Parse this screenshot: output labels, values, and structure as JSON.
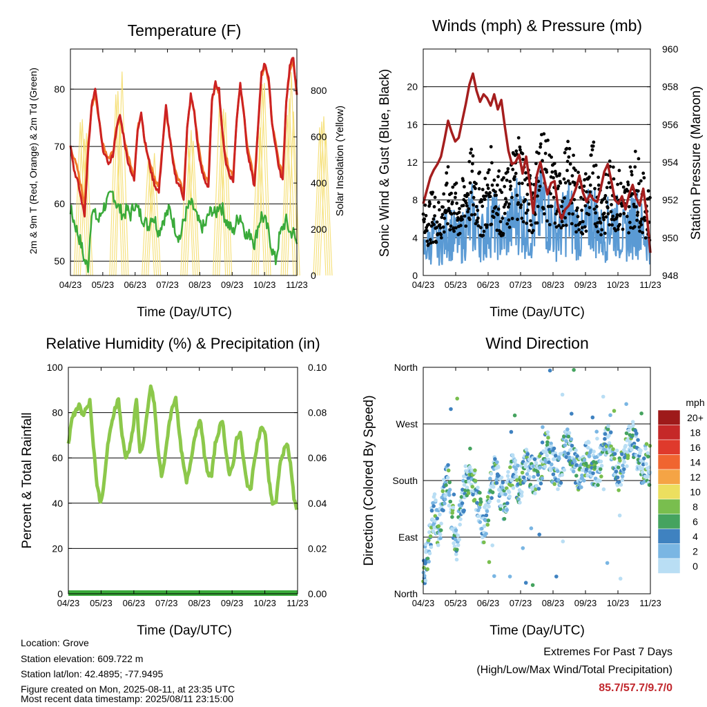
{
  "colors": {
    "temp2m": "#cc2222",
    "temp9m": "#f07a2a",
    "dewpoint": "#3aaa3a",
    "solar": "#f5de70",
    "wind": "#5a9ad4",
    "gust": "#000000",
    "pressure": "#a51e1e",
    "rh": "#8cc84b",
    "precip": "#3aaa3a",
    "extremes": "#c1272d"
  },
  "chart_data": [
    {
      "id": "temperature",
      "type": "line",
      "title": "Temperature (F)",
      "xlabel": "Time (Day/UTC)",
      "ylabel": "2m & 9m T (Red, Orange) & 2m Td (Green)",
      "ylabel_right": "Solar Insolation (Yellow)",
      "x_ticks": [
        "04/23",
        "05/23",
        "06/23",
        "07/23",
        "08/23",
        "09/23",
        "10/23",
        "11/23"
      ],
      "y_ticks": [
        50,
        60,
        70,
        80
      ],
      "y_right_ticks": [
        0,
        200,
        400,
        600,
        800
      ],
      "ylim": [
        47.5,
        87
      ],
      "ylim_right": [
        0,
        980
      ],
      "grid": "horizontal",
      "series": [
        {
          "key": "temp2m",
          "values": [
            70.5,
            66,
            64,
            61,
            58,
            69,
            77,
            80,
            75,
            70,
            68,
            67,
            68.5,
            73,
            75.5,
            72,
            68,
            66,
            64,
            73,
            76,
            71,
            68,
            65,
            63,
            62,
            70,
            77,
            72,
            67,
            64,
            63,
            61,
            73,
            79,
            76,
            70,
            66,
            64,
            63,
            78,
            81,
            80,
            72,
            67,
            65,
            64,
            75,
            81,
            76,
            69,
            66,
            63,
            73,
            83,
            84.5,
            82,
            74,
            70,
            66,
            64,
            78,
            84,
            85.5,
            79
          ]
        },
        {
          "key": "temp9m",
          "values": [
            70,
            68,
            66,
            63,
            60,
            70,
            77,
            79,
            75,
            71,
            69,
            68,
            69,
            73,
            75,
            72,
            69,
            67,
            65,
            73,
            76,
            71,
            68,
            66,
            64,
            63,
            70,
            76.5,
            72,
            68,
            65,
            64,
            62,
            73,
            78.5,
            76,
            71,
            67,
            65,
            64,
            78,
            80.5,
            79.5,
            72,
            68,
            66,
            65,
            75,
            80.5,
            76,
            70,
            67,
            64,
            73,
            82.5,
            84,
            81.5,
            74,
            70.5,
            67,
            65,
            78,
            83.5,
            85,
            79
          ]
        },
        {
          "key": "dewpoint",
          "values": [
            59,
            57,
            55,
            53,
            50,
            49,
            59,
            58,
            57,
            59,
            60,
            61,
            62,
            60,
            59,
            58,
            59,
            58,
            60,
            59,
            58,
            57,
            56,
            58,
            57,
            55,
            57,
            58,
            59,
            57,
            55,
            54,
            57,
            59,
            60,
            59,
            57,
            56,
            56,
            58,
            59,
            58,
            60,
            59,
            57,
            56,
            55,
            57,
            58,
            56,
            54,
            55,
            53,
            56,
            58,
            57,
            55,
            52,
            50,
            54,
            56,
            57,
            55,
            55,
            53
          ]
        },
        {
          "key": "solar",
          "peaks": [
            0.4,
            1.5,
            2.5,
            3.7,
            4.7,
            5.9,
            6.8,
            7.8
          ],
          "peak_values": [
            760,
            910,
            560,
            720,
            810,
            840,
            890,
            750
          ]
        }
      ]
    },
    {
      "id": "winds",
      "type": "line",
      "title": "Winds (mph) & Pressure (mb)",
      "xlabel": "Time (Day/UTC)",
      "ylabel": "Sonic Wind & Gust (Blue, Black)",
      "ylabel_right": "Station Pressure (Maroon)",
      "x_ticks": [
        "04/23",
        "05/23",
        "06/23",
        "07/23",
        "08/23",
        "09/23",
        "10/23",
        "11/23"
      ],
      "y_ticks": [
        0,
        4,
        8,
        12,
        16,
        20
      ],
      "y_right_ticks": [
        948,
        950,
        952,
        954,
        956,
        958,
        960
      ],
      "ylim": [
        0,
        24
      ],
      "ylim_right": [
        948,
        960
      ],
      "grid": "horizontal",
      "series": [
        {
          "key": "wind",
          "values": [
            2.5,
            3,
            3.5,
            4,
            3,
            3.5,
            4,
            5,
            4.5,
            4,
            3.5,
            4,
            5,
            5.5,
            6,
            5,
            4.5,
            4,
            5,
            6,
            5.5,
            5,
            4,
            4.5,
            5,
            5.5,
            6.5,
            7,
            6,
            5,
            4.5,
            5,
            6,
            7,
            7.5,
            6.5,
            5.5,
            5,
            4.5,
            5,
            6,
            6.5,
            5.5,
            5,
            4.5,
            4,
            5,
            6,
            6.5,
            5,
            4.5,
            4,
            5,
            6,
            5.5,
            5,
            4.5,
            4,
            5,
            5.5,
            6,
            5,
            4.5,
            4,
            3.5
          ]
        },
        {
          "key": "gust",
          "values": [
            5,
            5.5,
            6,
            6.5,
            5.5,
            6,
            7,
            8,
            7.5,
            7,
            6.5,
            7,
            8,
            9,
            9.5,
            8.5,
            7.5,
            7,
            8,
            9.5,
            9,
            8.5,
            7,
            7.5,
            8,
            9,
            10.5,
            11,
            10,
            8.5,
            7.5,
            8,
            9.5,
            11,
            11.5,
            10,
            9,
            8.5,
            7.5,
            8,
            9.5,
            10,
            9,
            8.5,
            7.5,
            7,
            8,
            9.5,
            10,
            8.5,
            7.5,
            7,
            8,
            9,
            8.5,
            8,
            7.5,
            7,
            8,
            9,
            9.5,
            8.5,
            7.5,
            7,
            6
          ]
        },
        {
          "key": "pressure",
          "values": [
            951.8,
            952.5,
            953.2,
            953.6,
            953.9,
            954.3,
            955.2,
            956.2,
            955.6,
            955.1,
            955.3,
            956.2,
            957.1,
            958.1,
            958.7,
            957.8,
            957.2,
            957.6,
            957.4,
            957.0,
            957.6,
            956.8,
            957.3,
            955.9,
            954.6,
            953.9,
            954.0,
            954.4,
            953.4,
            954.3,
            952.9,
            951.3,
            953.3,
            954.0,
            953.2,
            952.3,
            952.9,
            953.0,
            951.6,
            951.0,
            951.5,
            951.7,
            952.1,
            952.6,
            953.3,
            952.4,
            951.9,
            952.3,
            952.0,
            951.9,
            952.6,
            953.5,
            953.9,
            953.0,
            952.0,
            951.8,
            952.2,
            951.5,
            952.3,
            952.8,
            952.1,
            951.7,
            952.6,
            951.2,
            949.2
          ]
        }
      ]
    },
    {
      "id": "humidity",
      "type": "line",
      "title": "Relative Humidity (%) & Precipitation (in)",
      "xlabel": "Time (Day/UTC)",
      "ylabel": "Percent & Total Rainfall",
      "x_ticks": [
        "04/23",
        "05/23",
        "06/23",
        "07/23",
        "08/23",
        "09/23",
        "10/23",
        "11/23"
      ],
      "y_ticks": [
        0,
        20,
        40,
        60,
        80,
        100
      ],
      "y_right_ticks": [
        "0.00",
        "0.02",
        "0.04",
        "0.06",
        "0.08",
        "0.10"
      ],
      "ylim": [
        0,
        100
      ],
      "ylim_right": [
        0,
        0.1
      ],
      "grid": "horizontal",
      "series": [
        {
          "key": "rh",
          "values": [
            66,
            78,
            80,
            84,
            79,
            82,
            85,
            66,
            48,
            40,
            49,
            66,
            74,
            82,
            86,
            70,
            60,
            64,
            72,
            86,
            62,
            67,
            79,
            92,
            84,
            64,
            52,
            60,
            74,
            82,
            87,
            70,
            58,
            49,
            57,
            67,
            74,
            76,
            61,
            53,
            52,
            66,
            72,
            77,
            63,
            52,
            57,
            69,
            71,
            58,
            47,
            47,
            60,
            68,
            74,
            70,
            50,
            40,
            40,
            57,
            62,
            67,
            58,
            42,
            35
          ]
        },
        {
          "key": "precip",
          "values": [
            0,
            0
          ]
        }
      ]
    },
    {
      "id": "wind_direction",
      "type": "scatter",
      "title": "Wind Direction",
      "xlabel": "Time (Day/UTC)",
      "ylabel": "Direction (Colored By Speed)",
      "x_ticks": [
        "04/23",
        "05/23",
        "06/23",
        "07/23",
        "08/23",
        "09/23",
        "10/23",
        "11/23"
      ],
      "y_ticks": [
        "North",
        "East",
        "South",
        "West",
        "North"
      ],
      "ylim": [
        0,
        360
      ],
      "grid": "horizontal",
      "trend": [
        30,
        60,
        90,
        140,
        100,
        120,
        170,
        180,
        130,
        80,
        110,
        150,
        170,
        190,
        180,
        160,
        130,
        100,
        130,
        170,
        190,
        180,
        160,
        140,
        170,
        200,
        190,
        170,
        180,
        210,
        200,
        190,
        180,
        200,
        220,
        230,
        210,
        200,
        190,
        210,
        230,
        240,
        220,
        200,
        190,
        200,
        220,
        210,
        200,
        190,
        210,
        240,
        250,
        230,
        210,
        190,
        200,
        220,
        240,
        250,
        230,
        210,
        200,
        210,
        200
      ],
      "colorbar": {
        "label": "mph",
        "labels": [
          "20+",
          "18",
          "16",
          "14",
          "12",
          "10",
          "8",
          "6",
          "4",
          "2",
          "0"
        ],
        "colors": [
          "#9e1a1a",
          "#c52828",
          "#df3a2c",
          "#f06530",
          "#f5a445",
          "#ecdf5f",
          "#79be4e",
          "#45a35f",
          "#3f82c0",
          "#7ab6e3",
          "#b9def4"
        ]
      }
    }
  ],
  "info": {
    "location": "Location: Grove",
    "elevation": "Station elevation: 609.722 m",
    "latlon": "Station lat/lon: 42.4895; -77.9495",
    "created": "Figure created on Mon, 2025-08-11, at 23:35 UTC",
    "recent": "Most recent data timestamp: 2025/08/11 23:15:00"
  },
  "extremes": {
    "title": "Extremes For Past 7 Days",
    "subtitle": "(High/Low/Max Wind/Total Precipitation)",
    "values": "85.7/57.7/9.7/0"
  }
}
